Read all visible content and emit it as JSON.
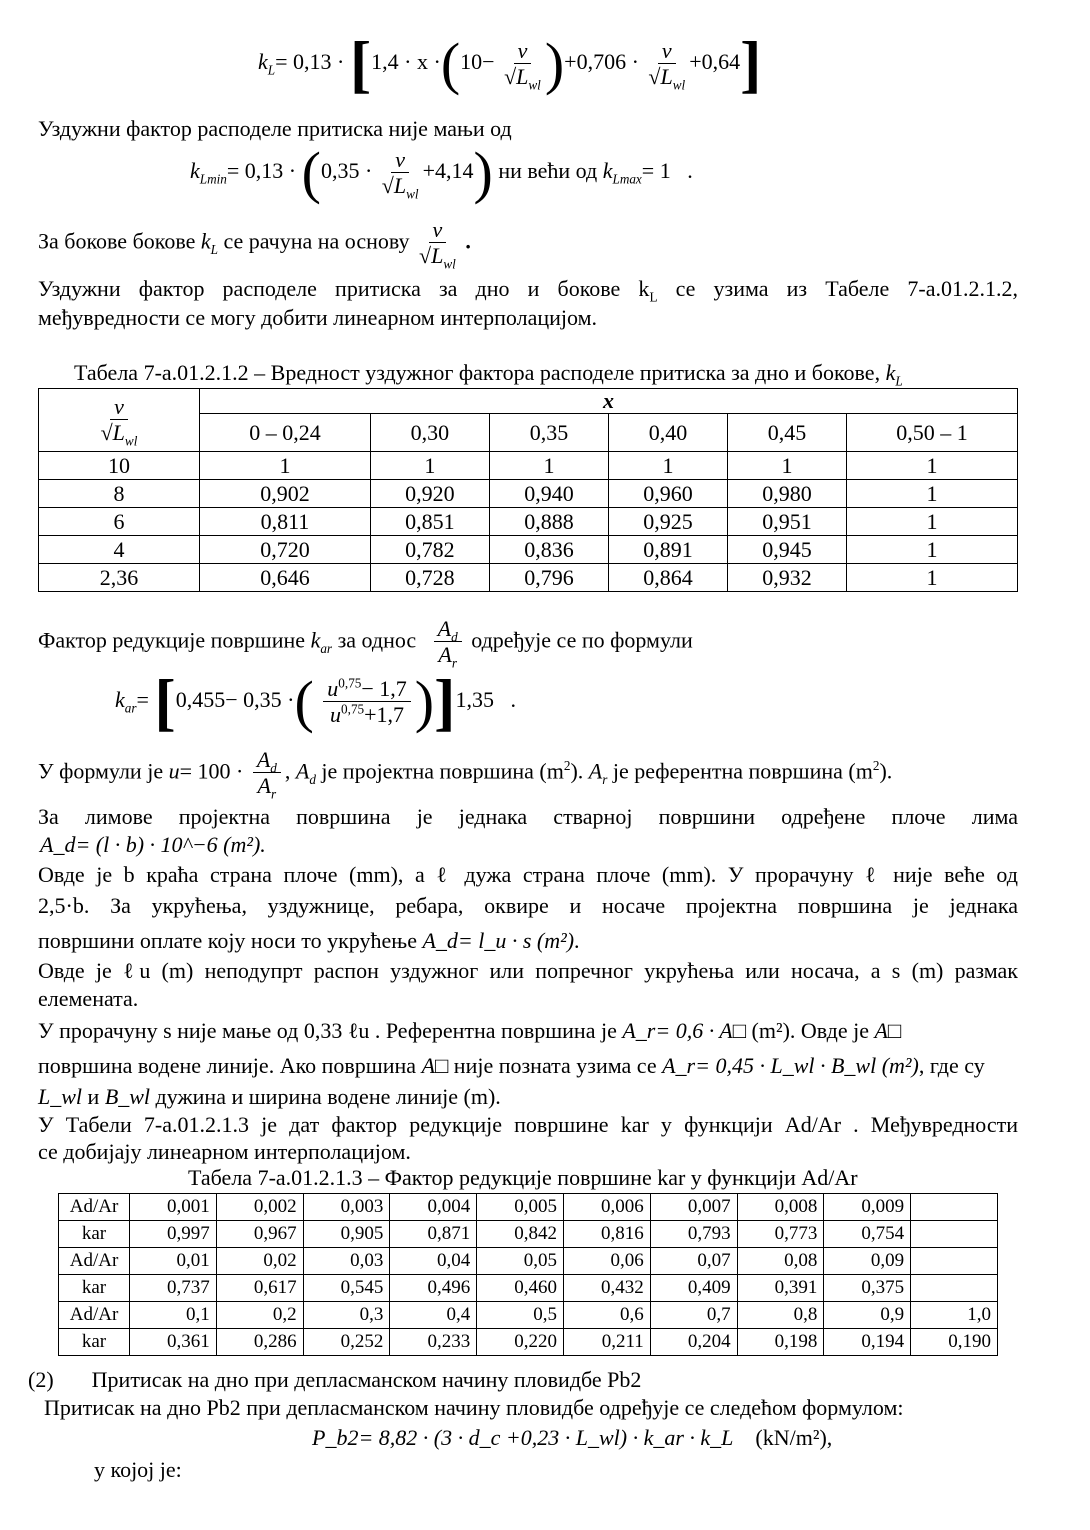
{
  "formula_kL": {
    "lhs": "k",
    "lhs_sub": "L",
    "eq": "= 0,13 ·",
    "part1": "1,4 · x ·",
    "ten": "10−",
    "num": "v",
    "den": "√L",
    "den_sub": "wl",
    "plus1": "+0,706 ·",
    "plus2": "+0,64"
  },
  "p1": "Уздужни фактор расподеле притиска  није мањи од",
  "formula_kLmin": {
    "lhs": "k",
    "lhs_sub": "Lmin",
    "eq": "= 0,13 ·",
    "a": "0,35 ·",
    "b": "+4,14",
    "mid": "ни већи од",
    "max": "k",
    "max_sub": "Lmax",
    "max_val": "= 1",
    "dot": "."
  },
  "p2": {
    "a": "За бокове  бокове",
    "k": "k",
    "k_sub": "L",
    "b": "се рачуна на основу",
    "dot": "."
  },
  "p3": [
    "Уздужни фактор расподеле притиска за дно и бокове k",
    "L",
    " се узима из Табеле 7-а.01.2.1.2,"
  ],
  "p3b": " међувредности се могу добити линеарном интерполацијом.",
  "table1": {
    "caption": "Табела 7-а.01.2.1.2 – Вредност уздужног фактора расподеле притиска за дно и бокове, ",
    "caption_k": "k",
    "caption_sub": "L",
    "x_label": "x",
    "columns": [
      "0 – 0,24",
      "0,30",
      "0,35",
      "0,40",
      "0,45",
      "0,50 – 1"
    ],
    "rows": [
      [
        "10",
        "1",
        "1",
        "1",
        "1",
        "1",
        "1"
      ],
      [
        "8",
        "0,902",
        "0,920",
        "0,940",
        "0,960",
        "0,980",
        "1"
      ],
      [
        "6",
        "0,811",
        "0,851",
        "0,888",
        "0,925",
        "0,951",
        "1"
      ],
      [
        "4",
        "0,720",
        "0,782",
        "0,836",
        "0,891",
        "0,945",
        "1"
      ],
      [
        "2,36",
        "0,646",
        "0,728",
        "0,796",
        "0,864",
        "0,932",
        "1"
      ]
    ]
  },
  "p4": {
    "a": "Фактор редукције површине ",
    "k": "k",
    "k_sub": "ar",
    "b": " за однос",
    "num": "A",
    "num_sub": "d",
    "den": "A",
    "den_sub": "r",
    "c": "одређује се по формули"
  },
  "formula_kar": {
    "lhs": "k",
    "lhs_sub": "ar",
    "eq": "=",
    "a": "0,455− 0,35 ·",
    "num": "u",
    "num_sup": "0,75",
    "num_b": "− 1,7",
    "den": "u",
    "den_sup": "0,75",
    "den_b": "+1,7",
    "exp": "1,35",
    "dot": "."
  },
  "p5": {
    "a": "У формули је",
    "u": "u",
    "eq": "= 100 ·",
    "b": ", ",
    "Ad": "A",
    "Ad_sub": "d",
    "c": " је пројектна површина (m",
    "sup": "2",
    "d": "). ",
    "Ar": "A",
    "Ar_sub": "r",
    "e": " је референтна површина (m",
    "f": ")."
  },
  "p6": "За лимове пројектна површина је једнака стварној површини одређене плоче лима",
  "p6b": "A_d= (l · b) · 10^−6 (m²).",
  "p7": "Овде је b краћа страна плоче (mm), а ℓ дужа страна плоче (mm). У прорачуну ℓ није веће од",
  "p8": "2,5·b. За укрућења, уздужнице, ребара, оквире и носаче пројектна површина је једнака",
  "p9": {
    "a": "површини оплате коју носи то укрућење",
    "f": "A_d= l_u · s (m²)",
    "dot": "."
  },
  "p10": "Овде је ℓu (m) неподупрт распон уздужног или попречног укрућења или носача, а s (m) размак",
  "p10b": "елемената.",
  "p11": {
    "a": "У прорачуну s није мање од 0,33 ℓu . Референтна површина је",
    "f": "A_r= 0,6 · A□",
    "b": "(m²). Овде је",
    "c": "A□"
  },
  "p12": {
    "a": "површина водене линије. Ако површина",
    "A": "A□",
    "b": "није позната узима се",
    "f": "A_r= 0,45 · L_wl · B_wl (m²)",
    "c": ", где су"
  },
  "p13": {
    "L": "L_wl",
    "i": "и",
    "B": "B_wl",
    "b": "дужина и ширина водене линије (m)."
  },
  "p14": "У Табели 7-а.01.2.1.3 је дат фактор редукције површине kar у функцији Ad/Ar . Међувредности",
  "p14b": "се добијају линеарном интерполацијом.",
  "table2": {
    "caption": "Табела 7-а.01.2.1.3 – Фактор редукције површине kar у функцији  Ad/Ar",
    "rows": [
      [
        "Ad/Ar",
        "0,001",
        "0,002",
        "0,003",
        "0,004",
        "0,005",
        "0,006",
        "0,007",
        "0,008",
        "0,009",
        ""
      ],
      [
        "kar",
        "0,997",
        "0,967",
        "0,905",
        "0,871",
        "0,842",
        "0,816",
        "0,793",
        "0,773",
        "0,754",
        ""
      ],
      [
        "Ad/Ar",
        "0,01",
        "0,02",
        "0,03",
        "0,04",
        "0,05",
        "0,06",
        "0,07",
        "0,08",
        "0,09",
        ""
      ],
      [
        "kar",
        "0,737",
        "0,617",
        "0,545",
        "0,496",
        "0,460",
        "0,432",
        "0,409",
        "0,391",
        "0,375",
        ""
      ],
      [
        "Ad/Ar",
        "0,1",
        "0,2",
        "0,3",
        "0,4",
        "0,5",
        "0,6",
        "0,7",
        "0,8",
        "0,9",
        "1,0"
      ],
      [
        "kar",
        "0,361",
        "0,286",
        "0,252",
        "0,233",
        "0,220",
        "0,211",
        "0,204",
        "0,198",
        "0,194",
        "0,190"
      ]
    ]
  },
  "s2_num": "(2)",
  "s2_title": "Притисак на дно при депласманском начину пловидбе Pb2",
  "p15": "Притисак на дно Pb2 при депласманском начину пловидбе одређује се следећом формулом:",
  "formula_pb2": {
    "f": "P_b2= 8,82 · (3 · d_c +0,23 · L_wl) · k_ar · k_L",
    "unit": "(kN/m²),"
  },
  "p16": "у којој је:"
}
